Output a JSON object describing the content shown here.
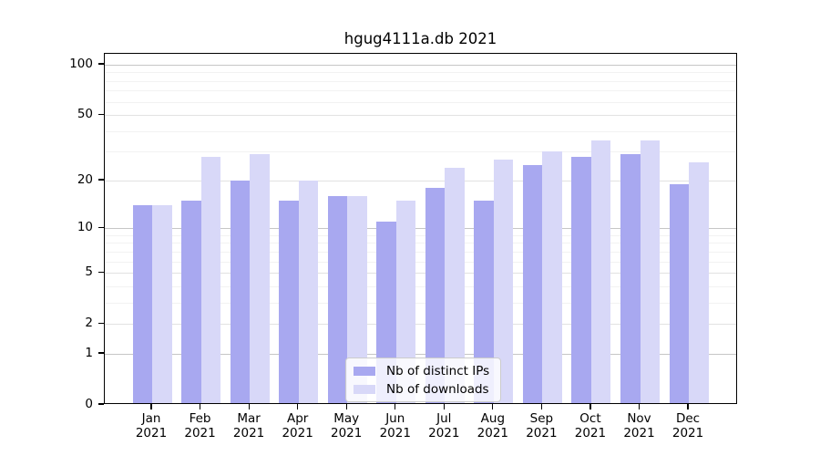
{
  "title": "hgug4111a.db 2021",
  "chart_data": {
    "type": "bar",
    "title": "hgug4111a.db 2021",
    "categories": [
      "Jan",
      "Feb",
      "Mar",
      "Apr",
      "May",
      "Jun",
      "Jul",
      "Aug",
      "Sep",
      "Oct",
      "Nov",
      "Dec"
    ],
    "category_year": "2021",
    "series": [
      {
        "name": "Nb of distinct IPs",
        "color": "#a8a8f0",
        "values": [
          14,
          15,
          20,
          15,
          16,
          11,
          18,
          15,
          25,
          28,
          29,
          19
        ]
      },
      {
        "name": "Nb of downloads",
        "color": "#d8d8f8",
        "values": [
          14,
          28,
          29,
          20,
          16,
          15,
          24,
          27,
          30,
          35,
          35,
          26
        ]
      }
    ],
    "yscale": "log1p",
    "ylim": [
      0,
      117
    ],
    "ytick_labels": [
      "100",
      "50",
      "20",
      "10",
      "5",
      "2",
      "1",
      "0"
    ],
    "ytick_values": [
      100,
      50,
      20,
      10,
      5,
      2,
      1,
      0
    ],
    "grid_minor_values": [
      2,
      3,
      4,
      6,
      7,
      8,
      9,
      20,
      30,
      40,
      60,
      70,
      80,
      90
    ],
    "grid_decade_values": [
      1,
      10,
      100
    ],
    "grid_mid_values": [
      2,
      5,
      20,
      50
    ],
    "xlabel": "",
    "ylabel": "",
    "legend_position": "bottom-center",
    "grid": true
  }
}
